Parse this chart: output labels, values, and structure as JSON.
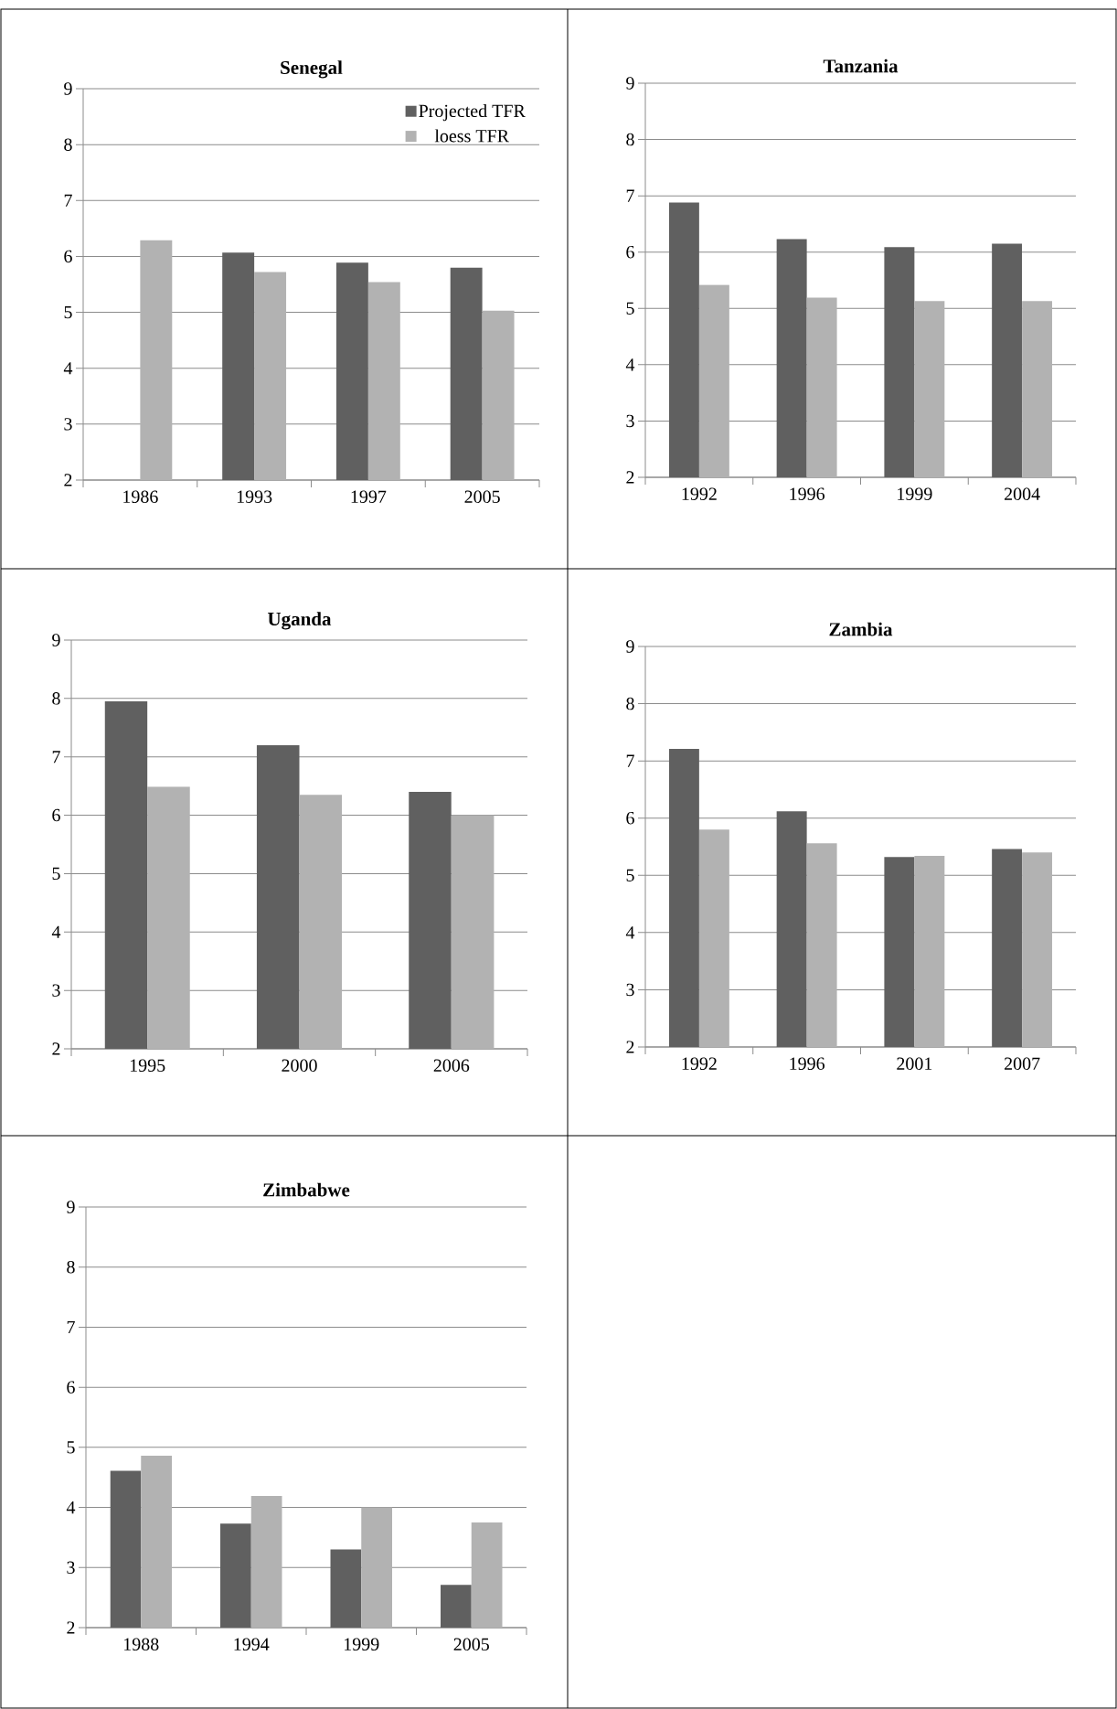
{
  "chart_data": [
    {
      "type": "bar",
      "title": "Senegal",
      "categories": [
        "1986",
        "1993",
        "1997",
        "2005"
      ],
      "series": [
        {
          "name": "Projected TFR",
          "color": "#606060",
          "values": [
            2,
            6.07,
            5.89,
            5.8
          ]
        },
        {
          "name": "loess TFR",
          "color": "#b2b2b2",
          "values": [
            6.29,
            5.72,
            5.54,
            5.03
          ]
        }
      ],
      "ylim": [
        2,
        9
      ],
      "yticks": [
        2,
        3,
        4,
        5,
        6,
        7,
        8,
        9
      ],
      "grid": "y",
      "legend": "top right"
    },
    {
      "type": "bar",
      "title": "Tanzania",
      "categories": [
        "1992",
        "1996",
        "1999",
        "2004"
      ],
      "series": [
        {
          "color": "#606060",
          "values": [
            6.88,
            6.23,
            6.09,
            6.15
          ]
        },
        {
          "color": "#b2b2b2",
          "values": [
            5.42,
            5.19,
            5.13,
            5.13
          ]
        }
      ],
      "ylim": [
        2,
        9
      ],
      "yticks": [
        2,
        3,
        4,
        5,
        6,
        7,
        8,
        9
      ],
      "grid": "y"
    },
    {
      "type": "bar",
      "title": "Uganda",
      "categories": [
        "1995",
        "2000",
        "2006"
      ],
      "series": [
        {
          "color": "#606060",
          "values": [
            7.95,
            7.2,
            6.4
          ]
        },
        {
          "color": "#b2b2b2",
          "values": [
            6.49,
            6.35,
            6.0
          ]
        }
      ],
      "ylim": [
        2,
        9
      ],
      "yticks": [
        2,
        3,
        4,
        5,
        6,
        7,
        8,
        9
      ],
      "grid": "y"
    },
    {
      "type": "bar",
      "title": "Zambia",
      "categories": [
        "1992",
        "1996",
        "2001",
        "2007"
      ],
      "series": [
        {
          "color": "#606060",
          "values": [
            7.21,
            6.12,
            5.32,
            5.46
          ]
        },
        {
          "color": "#b2b2b2",
          "values": [
            5.8,
            5.56,
            5.34,
            5.4
          ]
        }
      ],
      "ylim": [
        2,
        9
      ],
      "yticks": [
        2,
        3,
        4,
        5,
        6,
        7,
        8,
        9
      ],
      "grid": "y"
    },
    {
      "type": "bar",
      "title": "Zimbabwe",
      "categories": [
        "1988",
        "1994",
        "1999",
        "2005"
      ],
      "series": [
        {
          "color": "#606060",
          "values": [
            4.61,
            3.73,
            3.3,
            2.71
          ]
        },
        {
          "color": "#b2b2b2",
          "values": [
            4.86,
            4.19,
            4.0,
            3.75
          ]
        }
      ],
      "ylim": [
        2,
        9
      ],
      "yticks": [
        2,
        3,
        4,
        5,
        6,
        7,
        8,
        9
      ],
      "grid": "y"
    }
  ]
}
